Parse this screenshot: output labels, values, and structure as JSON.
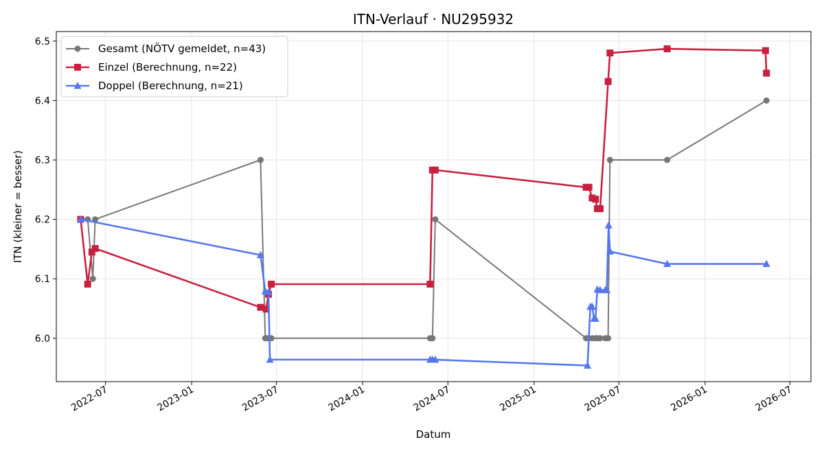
{
  "chart_data": {
    "type": "line",
    "title": "ITN-Verlauf · NU295932",
    "xlabel": "Datum",
    "ylabel": "ITN  (kleiner = besser)",
    "xlim": [
      "2022-03-18",
      "2026-08-15"
    ],
    "ylim": [
      5.927,
      6.516
    ],
    "x_ticks": [
      "2022-07",
      "2023-01",
      "2023-07",
      "2024-01",
      "2024-07",
      "2025-01",
      "2025-07",
      "2026-01",
      "2026-07"
    ],
    "y_ticks": [
      "6.0",
      "6.1",
      "6.2",
      "6.3",
      "6.4",
      "6.5"
    ],
    "grid": true,
    "legend_position": "top-left",
    "series": [
      {
        "name": "Gesamt (NÖTV gemeldet, n=43)",
        "color": "#444444",
        "marker": "circle",
        "points": [
          [
            "2022-05-09",
            6.2
          ],
          [
            "2022-05-24",
            6.2
          ],
          [
            "2022-06-04",
            6.1
          ],
          [
            "2022-06-09",
            6.2
          ],
          [
            "2023-05-28",
            6.3
          ],
          [
            "2023-06-07",
            6.0
          ],
          [
            "2023-06-10",
            6.0
          ],
          [
            "2023-06-14",
            6.0
          ],
          [
            "2023-06-20",
            6.0
          ],
          [
            "2024-05-24",
            6.0
          ],
          [
            "2024-05-29",
            6.0
          ],
          [
            "2024-06-04",
            6.2
          ],
          [
            "2025-04-22",
            6.0
          ],
          [
            "2025-04-28",
            6.0
          ],
          [
            "2025-05-05",
            6.0
          ],
          [
            "2025-05-12",
            6.0
          ],
          [
            "2025-05-16",
            6.0
          ],
          [
            "2025-05-22",
            6.0
          ],
          [
            "2025-06-02",
            6.0
          ],
          [
            "2025-06-08",
            6.0
          ],
          [
            "2025-06-12",
            6.3
          ],
          [
            "2025-10-12",
            6.3
          ],
          [
            "2026-05-12",
            6.4
          ]
        ]
      },
      {
        "name": "Einzel (Berechnung, n=22)",
        "color": "#c8203f",
        "marker": "square",
        "points": [
          [
            "2022-05-09",
            6.2
          ],
          [
            "2022-05-24",
            6.091
          ],
          [
            "2022-06-02",
            6.145
          ],
          [
            "2022-06-09",
            6.151
          ],
          [
            "2023-05-28",
            6.052
          ],
          [
            "2023-06-09",
            6.049
          ],
          [
            "2023-06-14",
            6.074
          ],
          [
            "2023-06-20",
            6.091
          ],
          [
            "2024-05-24",
            6.091
          ],
          [
            "2024-05-29",
            6.283
          ],
          [
            "2024-06-04",
            6.283
          ],
          [
            "2025-04-22",
            6.254
          ],
          [
            "2025-04-28",
            6.254
          ],
          [
            "2025-05-05",
            6.236
          ],
          [
            "2025-05-12",
            6.234
          ],
          [
            "2025-05-16",
            6.218
          ],
          [
            "2025-05-22",
            6.218
          ],
          [
            "2025-06-08",
            6.432
          ],
          [
            "2025-06-12",
            6.48
          ],
          [
            "2025-10-12",
            6.487
          ],
          [
            "2026-05-10",
            6.484
          ],
          [
            "2026-05-12",
            6.446
          ]
        ]
      },
      {
        "name": "Doppel (Berechnung, n=21)",
        "color": "#5577ee",
        "marker": "triangle",
        "points": [
          [
            "2022-05-09",
            6.2
          ],
          [
            "2023-05-28",
            6.14
          ],
          [
            "2023-06-07",
            6.079
          ],
          [
            "2023-06-14",
            6.078
          ],
          [
            "2023-06-17",
            5.964
          ],
          [
            "2024-05-24",
            5.964
          ],
          [
            "2024-05-29",
            5.964
          ],
          [
            "2024-06-04",
            5.964
          ],
          [
            "2025-04-25",
            5.954
          ],
          [
            "2025-05-01",
            6.053
          ],
          [
            "2025-05-05",
            6.053
          ],
          [
            "2025-05-09",
            6.033
          ],
          [
            "2025-05-12",
            6.033
          ],
          [
            "2025-05-16",
            6.082
          ],
          [
            "2025-05-22",
            6.081
          ],
          [
            "2025-06-02",
            6.081
          ],
          [
            "2025-06-05",
            6.081
          ],
          [
            "2025-06-09",
            6.19
          ],
          [
            "2025-06-12",
            6.146
          ],
          [
            "2025-10-12",
            6.125
          ],
          [
            "2026-05-12",
            6.125
          ]
        ]
      }
    ]
  }
}
